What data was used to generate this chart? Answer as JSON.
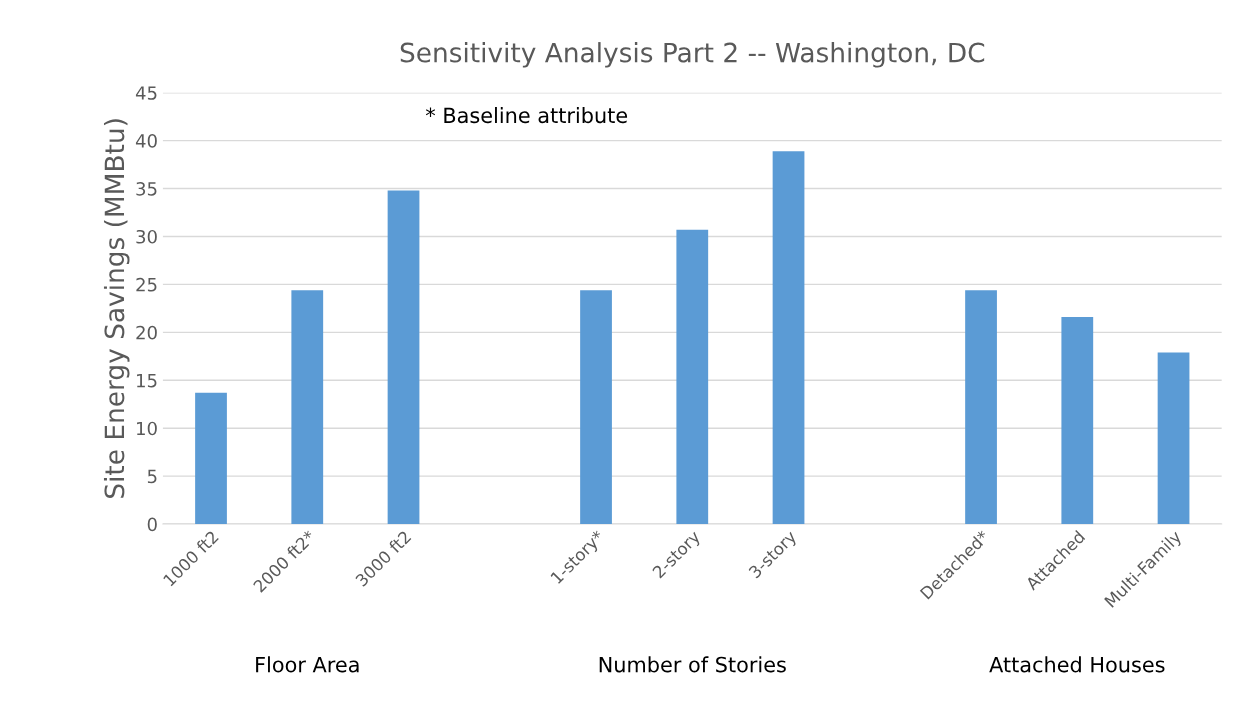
{
  "chart_data": {
    "type": "bar",
    "title": "Sensitivity Analysis Part 2 -- Washington, DC",
    "ylabel": "Site Energy Savings (MMBtu)",
    "categories": [
      "1000 ft2",
      "2000 ft2*",
      "3000 ft2",
      null,
      "1-story*",
      "2-story",
      "3-story",
      null,
      "Detached*",
      "Attached",
      "Multi-Family"
    ],
    "values": [
      13.7,
      24.4,
      34.8,
      null,
      24.4,
      30.7,
      38.9,
      null,
      24.4,
      21.6,
      17.9
    ],
    "color": "#5b9bd5",
    "ylim": [
      0,
      45
    ],
    "yticks": [
      0,
      5,
      10,
      15,
      20,
      25,
      30,
      35,
      40,
      45
    ],
    "grid": "y",
    "annotations": [
      "* Baseline attribute",
      "Floor Area",
      "Number of Stories",
      "Attached Houses"
    ]
  }
}
